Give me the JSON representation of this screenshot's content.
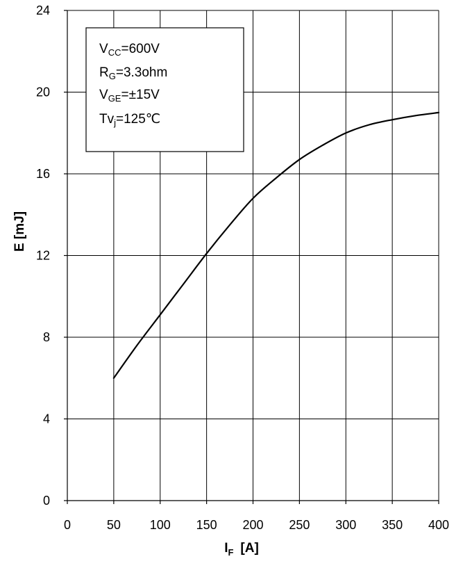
{
  "chart_data": {
    "type": "line",
    "xlabel": {
      "main": "I",
      "sub": "F",
      "unit": "[A]"
    },
    "ylabel": "E  [mJ]",
    "xlim": [
      0,
      400
    ],
    "ylim": [
      0,
      24
    ],
    "x_ticks": [
      0,
      50,
      100,
      150,
      200,
      250,
      300,
      350,
      400
    ],
    "y_ticks": [
      0,
      4,
      8,
      12,
      16,
      20,
      24
    ],
    "x_tick_labels": [
      "0",
      "50",
      "100",
      "150",
      "200",
      "250",
      "300",
      "350",
      "400"
    ],
    "y_tick_labels": [
      "0",
      "4",
      "8",
      "12",
      "16",
      "20",
      "24"
    ],
    "grid": true,
    "legend_placement": "top-left",
    "conditions": [
      {
        "pre": "V",
        "sub": "CC",
        "post": "=600V"
      },
      {
        "pre": "R",
        "sub": "G",
        "post": "=3.3ohm"
      },
      {
        "pre": "V",
        "sub": "GE",
        "post": "=±15V"
      },
      {
        "pre": "Tv",
        "sub": "j",
        "post": "=125℃"
      }
    ],
    "series": [
      {
        "x": [
          50,
          75,
          100,
          125,
          150,
          175,
          200,
          225,
          250,
          275,
          300,
          325,
          350,
          375,
          400
        ],
        "values": [
          6.0,
          7.6,
          9.1,
          10.6,
          12.1,
          13.5,
          14.8,
          15.8,
          16.7,
          17.4,
          18.0,
          18.4,
          18.65,
          18.85,
          19.0
        ]
      }
    ]
  }
}
